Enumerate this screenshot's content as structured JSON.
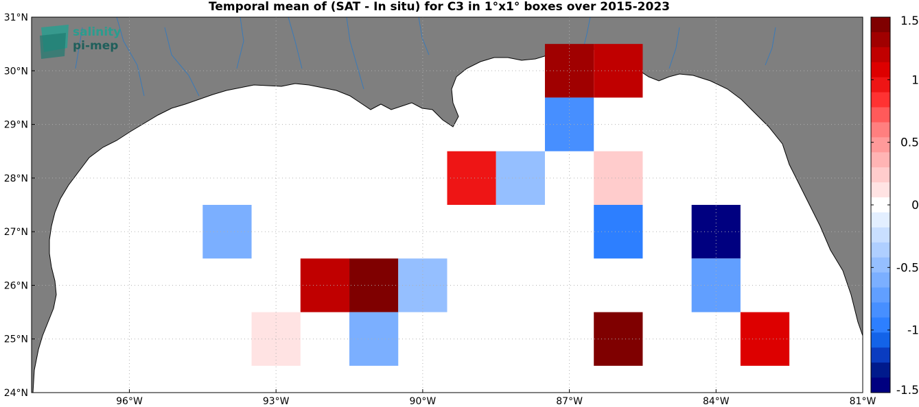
{
  "title": "Temporal mean of (SAT - In situ) for C3 in 1°x1° boxes over 2015-2023",
  "logo": {
    "line1": "salinity",
    "line2": "pi-mep"
  },
  "map": {
    "lon_range": [
      -98,
      -81
    ],
    "lat_range": [
      24,
      31
    ],
    "lon_ticks": [
      {
        "value": -96,
        "label": "96°W"
      },
      {
        "value": -93,
        "label": "93°W"
      },
      {
        "value": -90,
        "label": "90°W"
      },
      {
        "value": -87,
        "label": "87°W"
      },
      {
        "value": -84,
        "label": "84°W"
      },
      {
        "value": -81,
        "label": "81°W"
      }
    ],
    "lat_ticks": [
      {
        "value": 24,
        "label": "24°N"
      },
      {
        "value": 25,
        "label": "25°N"
      },
      {
        "value": 26,
        "label": "26°N"
      },
      {
        "value": 27,
        "label": "27°N"
      },
      {
        "value": 28,
        "label": "28°N"
      },
      {
        "value": 29,
        "label": "29°N"
      },
      {
        "value": 30,
        "label": "30°N"
      },
      {
        "value": 31,
        "label": "31°N"
      }
    ],
    "grid": true,
    "land_color": "#7f7f7f",
    "ocean_color": "#ffffff",
    "river_color": "#3a7ab8"
  },
  "boxes": [
    {
      "lon": -87,
      "lat": 30,
      "value": 1.4
    },
    {
      "lon": -86,
      "lat": 30,
      "value": 1.2
    },
    {
      "lon": -87,
      "lat": 29,
      "value": -0.9
    },
    {
      "lon": -89,
      "lat": 28,
      "value": 1.0
    },
    {
      "lon": -88,
      "lat": 28,
      "value": -0.5
    },
    {
      "lon": -86,
      "lat": 28,
      "value": 0.3
    },
    {
      "lon": -94,
      "lat": 27,
      "value": -0.6
    },
    {
      "lon": -86,
      "lat": 27,
      "value": -1.0
    },
    {
      "lon": -84,
      "lat": 27,
      "value": -1.5
    },
    {
      "lon": -92,
      "lat": 26,
      "value": 1.2
    },
    {
      "lon": -91,
      "lat": 26,
      "value": 1.5
    },
    {
      "lon": -90,
      "lat": 26,
      "value": -0.5
    },
    {
      "lon": -84,
      "lat": 26,
      "value": -0.8
    },
    {
      "lon": -93,
      "lat": 25,
      "value": 0.15
    },
    {
      "lon": -91,
      "lat": 25,
      "value": -0.6
    },
    {
      "lon": -86,
      "lat": 25,
      "value": 1.5
    },
    {
      "lon": -83,
      "lat": 25,
      "value": 1.15
    }
  ],
  "colorbar": {
    "range": [
      -1.5,
      1.5
    ],
    "levels": 24,
    "ticks": [
      {
        "value": 1.5,
        "label": "1.5"
      },
      {
        "value": 1,
        "label": "1"
      },
      {
        "value": 0.5,
        "label": "0.5"
      },
      {
        "value": 0,
        "label": "0"
      },
      {
        "value": -0.5,
        "label": "-0.5"
      },
      {
        "value": -1,
        "label": "-1"
      },
      {
        "value": -1.5,
        "label": "-1.5"
      }
    ],
    "colors_top_to_bottom": [
      "#7f0000",
      "#a00000",
      "#c00000",
      "#dd0000",
      "#ee1515",
      "#ff3232",
      "#ff5a5a",
      "#ff7f7f",
      "#ff9a9a",
      "#ffb4b4",
      "#ffcccc",
      "#ffe3e3",
      "#ffffff",
      "#e3efff",
      "#c9dfff",
      "#afcfff",
      "#95bfff",
      "#7bafff",
      "#619fff",
      "#478fff",
      "#2d7fff",
      "#1363e8",
      "#0a3cc0",
      "#001a8c",
      "#000080"
    ]
  }
}
